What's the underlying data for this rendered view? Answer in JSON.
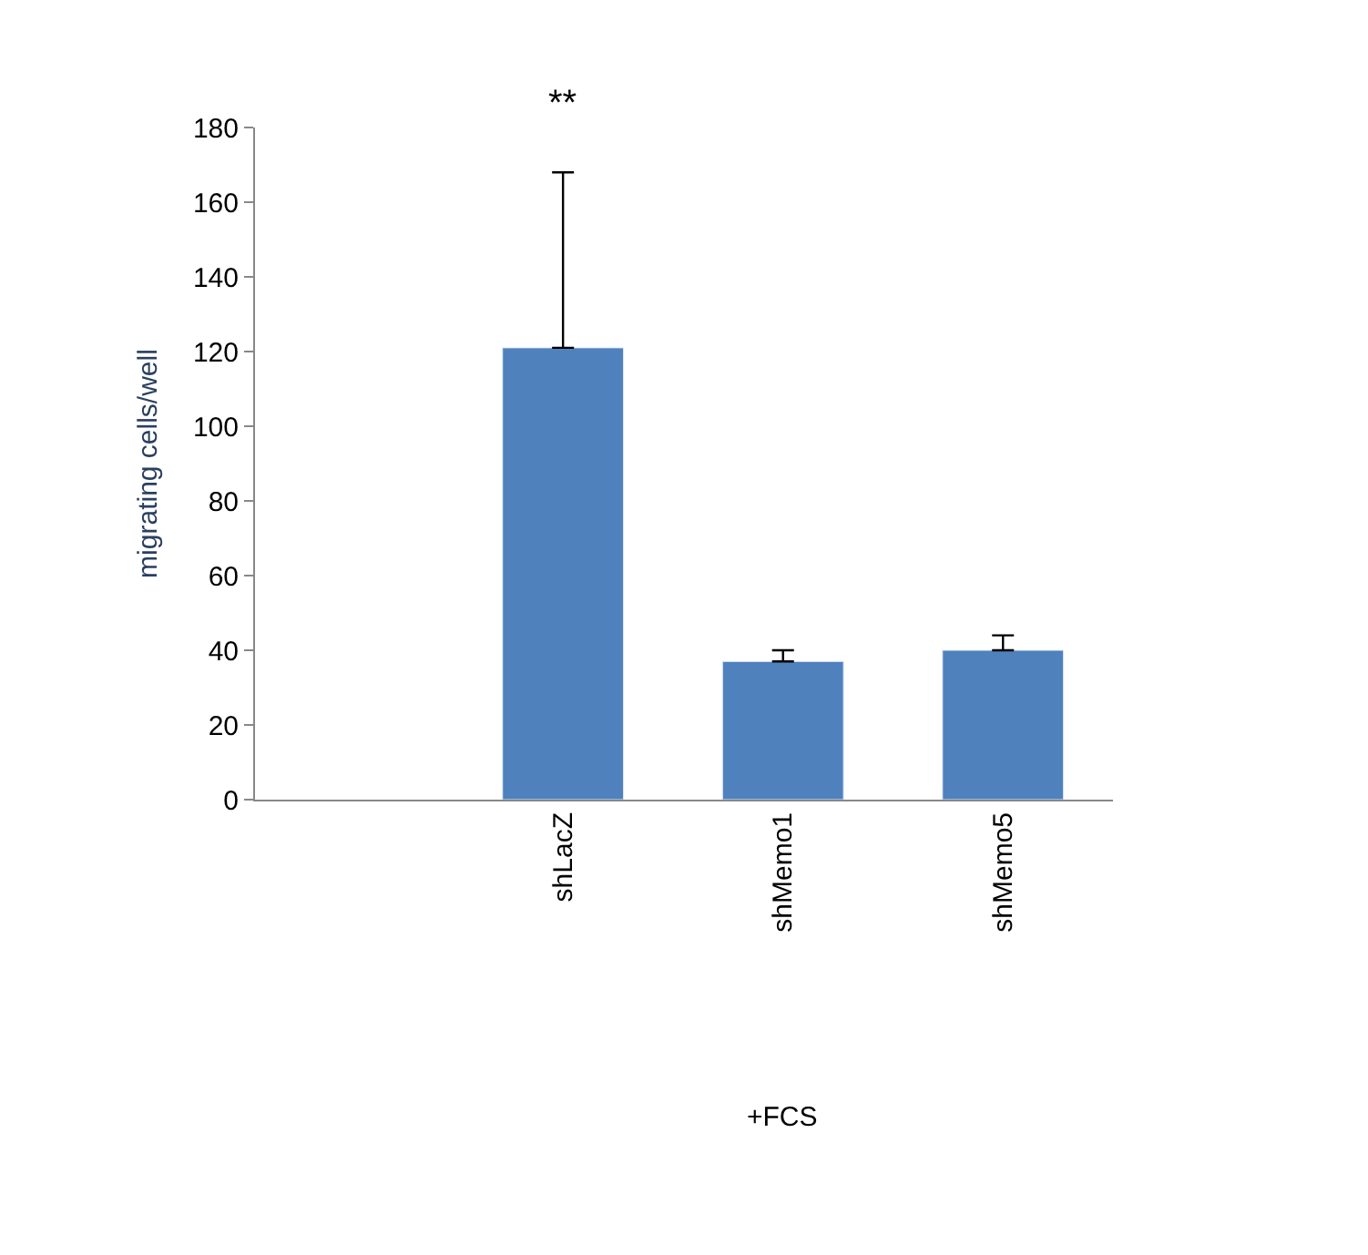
{
  "chart_data": {
    "type": "bar",
    "ylabel": "migrating cells/well",
    "categories": [
      "shLacZ",
      "shMemo1",
      "shMemo5"
    ],
    "values": [
      121,
      37,
      40
    ],
    "errors": [
      [
        121,
        168
      ],
      [
        37,
        40
      ],
      [
        40,
        44
      ]
    ],
    "color": "#4f81bd",
    "ylim": [
      0,
      180
    ],
    "yticks": [
      0,
      20,
      40,
      60,
      80,
      100,
      120,
      140,
      160,
      180
    ],
    "annotations": [
      "**",
      "+FCS"
    ]
  }
}
